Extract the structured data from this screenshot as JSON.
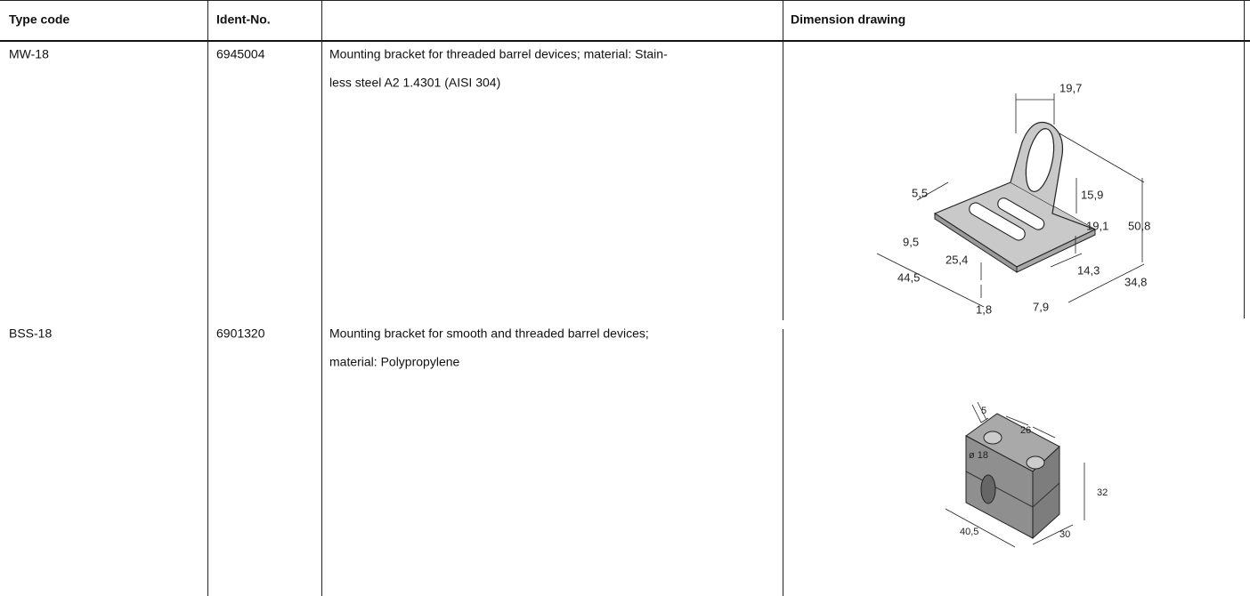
{
  "table": {
    "header": [
      "Type code",
      "Ident-No.",
      "Dimension drawing"
    ],
    "rows": [
      {
        "type_code": "MW-18",
        "ident_no": "6945004",
        "description": [
          "Mounting bracket for threaded barrel devices; material: Stain-",
          "less steel A2 1.4301 (AISI 304)"
        ]
      },
      {
        "type_code": "BSS-18",
        "ident_no": "6901320",
        "description": [
          "Mounting bracket for smooth and threaded barrel devices;",
          "material: Polypropylene"
        ]
      }
    ]
  },
  "drawings": [
    {
      "labels": [
        "19,7",
        "15,9",
        "5,5",
        "19,1",
        "50,8",
        "9,5",
        "25,4",
        "14,3",
        "44,5",
        "34,8",
        "1,8",
        "7,9"
      ]
    },
    {
      "labels": [
        "5",
        "26",
        "ø 18",
        "32",
        "40,5",
        "30"
      ]
    }
  ]
}
